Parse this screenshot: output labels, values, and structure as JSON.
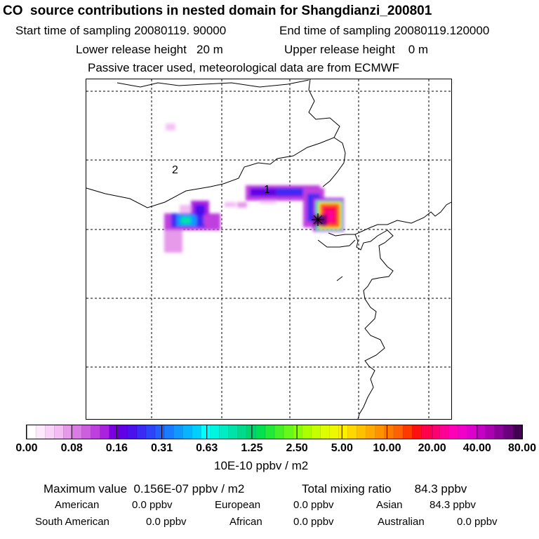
{
  "header": {
    "title": "CO  source contributions in nested domain for Shangdianzi_200801",
    "start_time": "Start time of sampling 20080119. 90000",
    "end_time": "End time of sampling 20080119.120000",
    "lower_release": "Lower release height   20 m",
    "upper_release": "Upper release height    0 m",
    "tracer_note": "Passive tracer used, meteorological data are from ECMWF"
  },
  "map": {
    "labels": [
      "1",
      "2"
    ],
    "receptor_marker": "receptor-star"
  },
  "colorbar": {
    "ticks": [
      "0.00",
      "0.08",
      "0.16",
      "0.31",
      "0.63",
      "1.25",
      "2.50",
      "5.00",
      "10.00",
      "20.00",
      "40.00",
      "80.00"
    ],
    "colors": [
      "#ffffff",
      "#fde8fd",
      "#f8d2f8",
      "#f3bcf3",
      "#e69ae9",
      "#d97ce3",
      "#cc5ee0",
      "#bf40df",
      "#aa22e0",
      "#7a00e0",
      "#6100e6",
      "#4a10ee",
      "#3a2af4",
      "#2e44f8",
      "#245ffb",
      "#1a7cfd",
      "#1098fe",
      "#08b4fe",
      "#00cffe",
      "#00ffff",
      "#00f5e0",
      "#00ecc4",
      "#00e3a8",
      "#00da8c",
      "#00d370",
      "#00e050",
      "#22e83a",
      "#44f028",
      "#66f81a",
      "#88ff0e",
      "#aaff00",
      "#c4ff00",
      "#ddff00",
      "#eef800",
      "#ffee00",
      "#ffd800",
      "#ffc000",
      "#ffaa00",
      "#ff9200",
      "#ff7a00",
      "#ff6200",
      "#ff3a00",
      "#ff1010",
      "#ff004a",
      "#ff0070",
      "#ff0096",
      "#ff00b8",
      "#f000c8",
      "#dd00cc",
      "#c400c4",
      "#aa00b0",
      "#8c009a",
      "#6a007c",
      "#440052"
    ],
    "unit": "10E-10 ppbv / m2"
  },
  "summary": {
    "max_value": "Maximum value  0.156E-07 ppbv / m2",
    "total_mixing": "Total mixing ratio       84.3 ppbv",
    "regions": [
      {
        "label": "American",
        "value": "0.0 ppbv"
      },
      {
        "label": "European",
        "value": "0.0 ppbv"
      },
      {
        "label": "Asian",
        "value": "84.3 ppbv"
      },
      {
        "label": "South American",
        "value": "0.0 ppbv"
      },
      {
        "label": "African",
        "value": "0.0 ppbv"
      },
      {
        "label": "Australian",
        "value": "0.0 ppbv"
      }
    ]
  }
}
